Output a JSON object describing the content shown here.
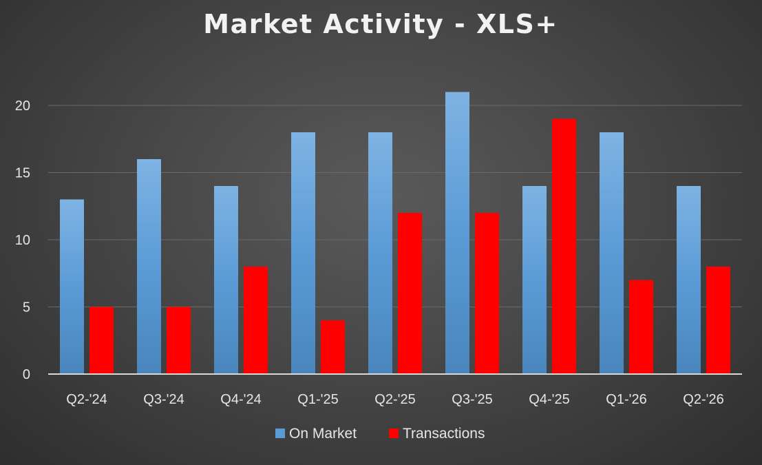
{
  "chart_data": {
    "type": "bar",
    "title": "Market Activity - XLS+",
    "categories": [
      "Q2-'24",
      "Q3-'24",
      "Q4-'24",
      "Q1-'25",
      "Q2-'25",
      "Q3-'25",
      "Q4-'25",
      "Q1-'26",
      "Q2-'26"
    ],
    "series": [
      {
        "name": "On Market",
        "values": [
          13,
          16,
          14,
          18,
          18,
          21,
          14,
          18,
          14
        ],
        "color": "#5b9bd5"
      },
      {
        "name": "Transactions",
        "values": [
          5,
          5,
          8,
          4,
          12,
          12,
          19,
          7,
          8
        ],
        "color": "#ff0000"
      }
    ],
    "ylim": [
      0,
      22
    ],
    "yticks": [
      0,
      5,
      10,
      15,
      20
    ],
    "grid": true,
    "legend_position": "bottom-center"
  }
}
